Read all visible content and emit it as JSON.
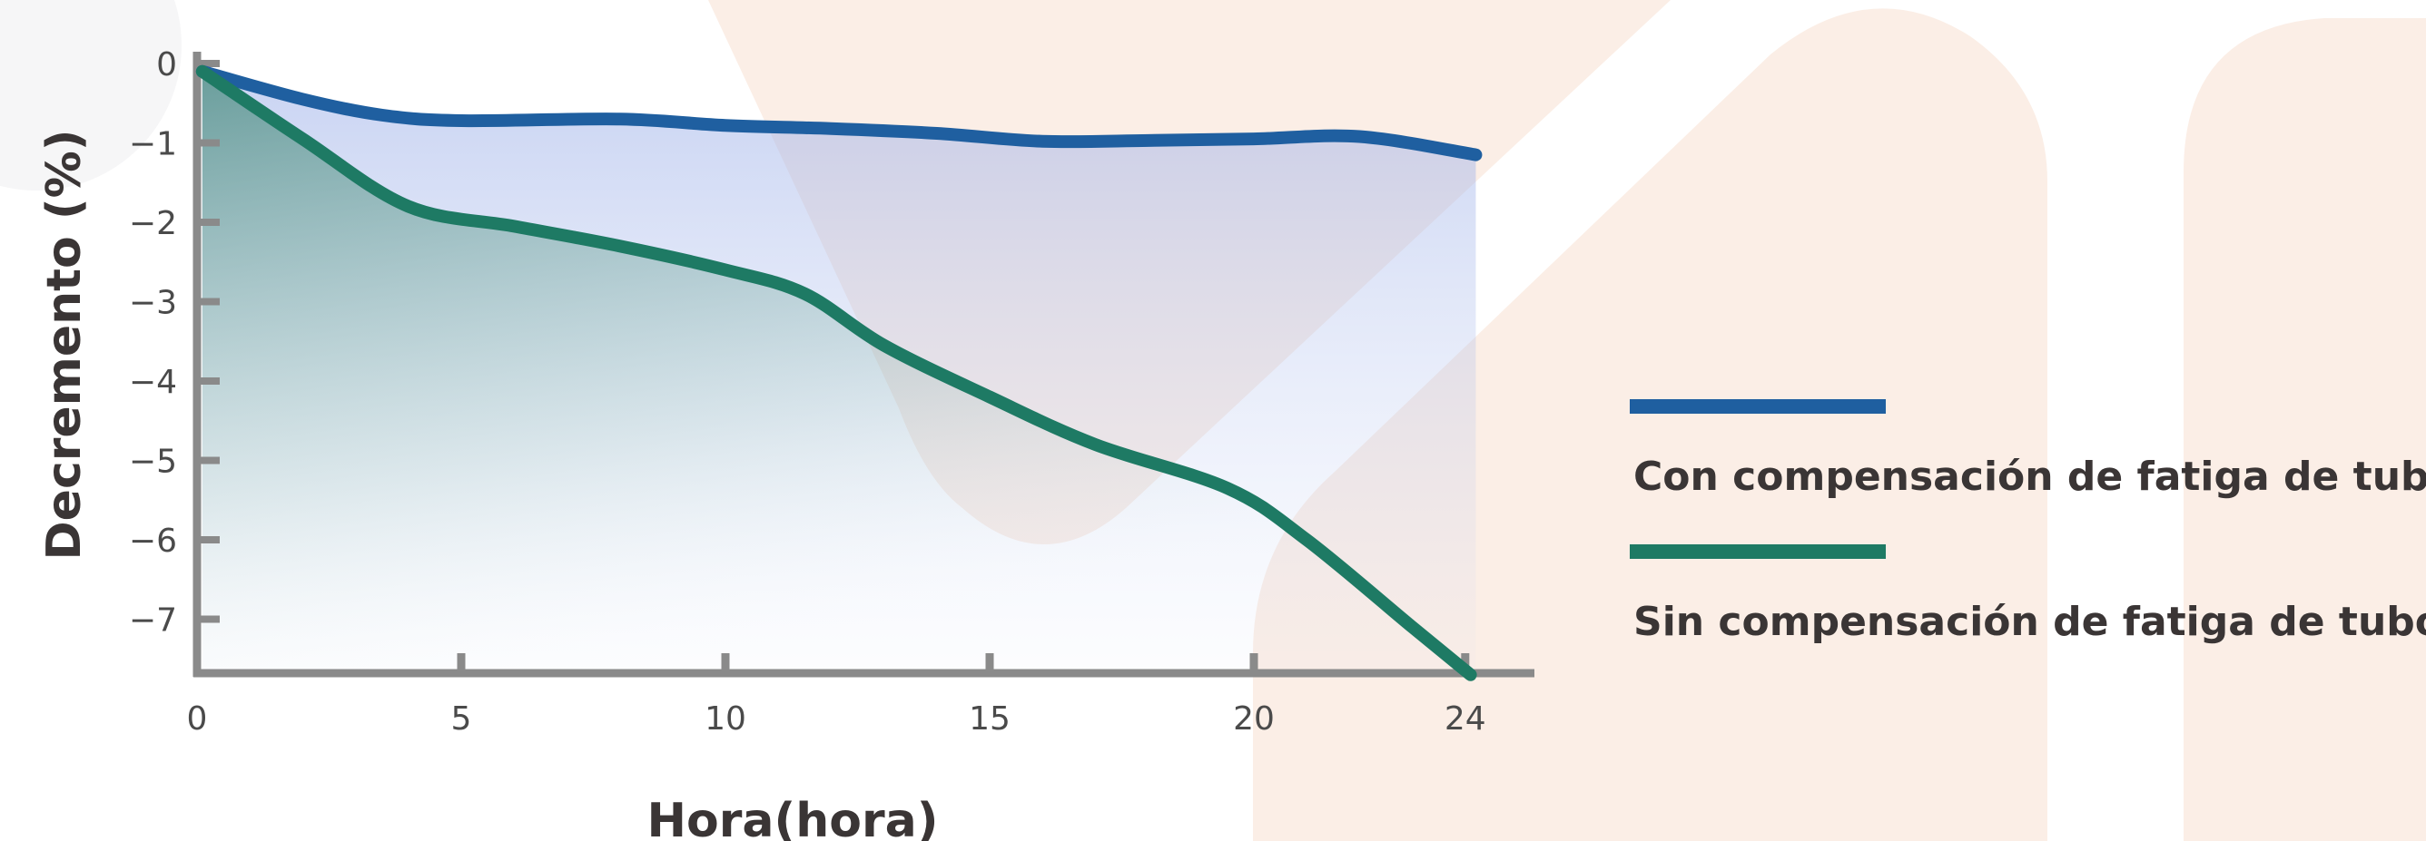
{
  "chart_data": {
    "type": "line",
    "title": "",
    "xlabel": "Hora(hora)",
    "ylabel": "Decremento (%)",
    "xlim": [
      0,
      24.5
    ],
    "ylim": [
      -7.8,
      0.1
    ],
    "x_ticks": [
      0,
      5,
      10,
      15,
      20,
      24
    ],
    "x_tick_labels": [
      "0",
      "5",
      "10",
      "15",
      "20",
      "24"
    ],
    "y_ticks": [
      0,
      -1,
      -2,
      -3,
      -4,
      -5,
      -6,
      -7
    ],
    "y_tick_labels": [
      "0",
      "−1",
      "−2",
      "−3",
      "−4",
      "−5",
      "−6",
      "−7"
    ],
    "grid": false,
    "legend_position": "right",
    "series": [
      {
        "name": "Con compensación de fatiga de tubo",
        "color": "#1f5fa0",
        "x": [
          0.1,
          2,
          3.5,
          5,
          8,
          10,
          12,
          14,
          16,
          18,
          20,
          22,
          24.2
        ],
        "y": [
          -0.1,
          -0.45,
          -0.65,
          -0.72,
          -0.7,
          -0.78,
          -0.82,
          -0.88,
          -0.98,
          -0.97,
          -0.95,
          -0.92,
          -1.15
        ]
      },
      {
        "name": "Sin compensación de fatiga de tubo",
        "color": "#1e7a64",
        "x": [
          0.1,
          2,
          4,
          6,
          8,
          10,
          11.5,
          13,
          15,
          17,
          19.5,
          21,
          23,
          24.1
        ],
        "y": [
          -0.1,
          -0.95,
          -1.8,
          -2.05,
          -2.3,
          -2.6,
          -2.9,
          -3.55,
          -4.2,
          -4.8,
          -5.35,
          -6.0,
          -7.1,
          -7.7
        ]
      }
    ]
  }
}
